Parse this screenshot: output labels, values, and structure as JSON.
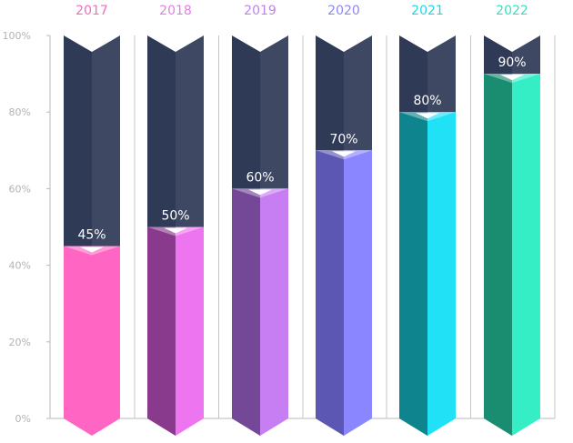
{
  "chart_data": {
    "type": "bar",
    "categories": [
      "2017",
      "2018",
      "2019",
      "2020",
      "2021",
      "2022"
    ],
    "values": [
      45,
      50,
      60,
      70,
      80,
      90
    ],
    "value_labels": [
      "45%",
      "50%",
      "60%",
      "70%",
      "80%",
      "90%"
    ],
    "ylim": [
      0,
      100
    ],
    "y_ticks": [
      0,
      20,
      40,
      60,
      80,
      100
    ],
    "y_tick_labels": [
      "0%",
      "20%",
      "40%",
      "60%",
      "80%",
      "100%"
    ],
    "grid": false,
    "background_color": "#3a4560",
    "colors": [
      {
        "light": "#ff66c4",
        "dark": "#ff66c4",
        "label": "#f06fc0"
      },
      {
        "light": "#ee75f0",
        "dark": "#8a3a8c",
        "label": "#e27fe6"
      },
      {
        "light": "#c77ef2",
        "dark": "#744896",
        "label": "#c084e8"
      },
      {
        "light": "#8a86ff",
        "dark": "#5c57b3",
        "label": "#8f89f0"
      },
      {
        "light": "#20e1f5",
        "dark": "#0e848f",
        "label": "#21d6e8"
      },
      {
        "light": "#36eec5",
        "dark": "#1a8c70",
        "label": "#35e2bf"
      }
    ]
  }
}
